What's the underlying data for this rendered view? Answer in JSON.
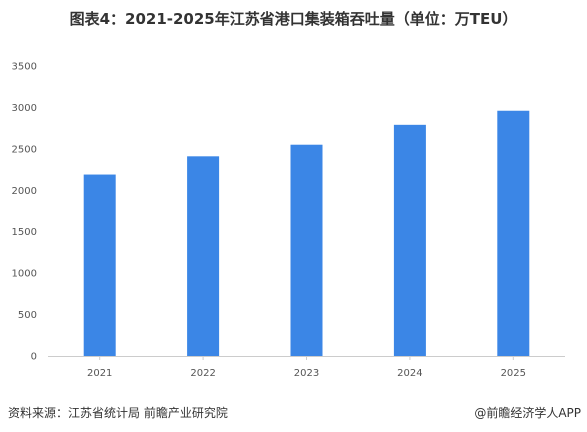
{
  "chart_data": {
    "type": "bar",
    "title": "图表4：2021-2025年江苏省港口集装箱吞吐量（单位：万TEU）",
    "categories": [
      "2021",
      "2022",
      "2023",
      "2024",
      "2025"
    ],
    "values": [
      2190,
      2410,
      2550,
      2790,
      2960
    ],
    "ylim": [
      0,
      3500
    ],
    "yticks": [
      0,
      500,
      1000,
      1500,
      2000,
      2500,
      3000,
      3500
    ],
    "grid": false,
    "legend": "none",
    "bar_color": "#3b86e6"
  },
  "footer": {
    "source": "资料来源：江苏省统计局  前瞻产业研究院",
    "brand": "@前瞻经济学人APP"
  }
}
